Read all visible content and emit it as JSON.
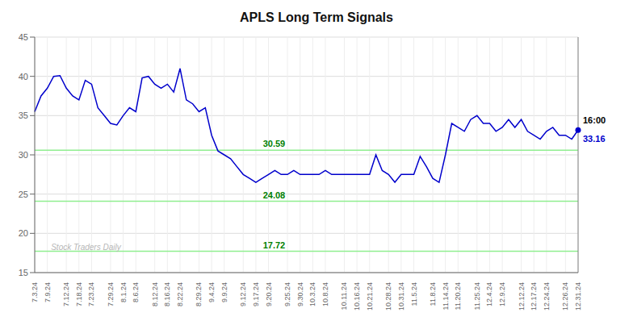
{
  "chart_data": {
    "type": "line",
    "title": "APLS Long Term Signals",
    "categories": [
      "7.3.24",
      null,
      "7.9.24",
      null,
      null,
      "7.12.24",
      null,
      "7.18.24",
      null,
      "7.23.24",
      null,
      null,
      "7.29.24",
      null,
      "8.1.24",
      null,
      "8.6.24",
      null,
      null,
      "8.12.24",
      null,
      "8.16.24",
      null,
      "8.22.24",
      null,
      null,
      "8.29.24",
      null,
      "9.4.24",
      null,
      "9.9.24",
      null,
      null,
      "9.12.24",
      null,
      "9.17.24",
      null,
      "9.20.24",
      null,
      null,
      "9.25.24",
      null,
      "9.30.24",
      null,
      "10.3.24",
      null,
      "10.8.24",
      null,
      null,
      "10.11.24",
      null,
      "10.16.24",
      null,
      "10.21.24",
      null,
      null,
      "10.28.24",
      null,
      "10.31.24",
      null,
      "11.5.24",
      null,
      null,
      "11.8.24",
      null,
      "11.14.24",
      null,
      "11.20.24",
      null,
      null,
      "11.25.24",
      null,
      "12.4.24",
      null,
      "12.9.24",
      null,
      null,
      "12.12.24",
      null,
      "12.17.24",
      null,
      "12.24.24",
      null,
      null,
      "12.26.24",
      null,
      "12.31.24"
    ],
    "values": [
      35.5,
      37.5,
      38.5,
      40.0,
      40.1,
      38.5,
      37.5,
      37.0,
      39.5,
      39.0,
      36.0,
      35.0,
      34.0,
      33.8,
      35.0,
      36.0,
      35.5,
      39.8,
      40.0,
      39.0,
      38.5,
      39.0,
      38.0,
      41.0,
      37.0,
      36.5,
      35.5,
      36.0,
      32.5,
      30.5,
      30.0,
      29.5,
      28.5,
      27.5,
      27.0,
      26.5,
      27.0,
      27.5,
      28.0,
      27.5,
      27.5,
      28.0,
      27.5,
      27.5,
      27.5,
      27.5,
      28.0,
      27.5,
      27.5,
      27.5,
      27.5,
      27.5,
      27.5,
      27.5,
      30.0,
      28.0,
      27.5,
      26.5,
      27.5,
      27.5,
      27.5,
      29.8,
      28.5,
      27.0,
      26.5,
      30.0,
      34.0,
      33.5,
      33.0,
      34.5,
      35.0,
      34.0,
      34.0,
      33.0,
      33.5,
      34.5,
      33.5,
      34.5,
      33.0,
      32.5,
      32.0,
      33.0,
      33.5,
      32.5,
      32.5,
      32.0,
      33.16
    ],
    "color": "#0000cc",
    "ylim": [
      15,
      45
    ],
    "yticks": [
      15,
      20,
      25,
      30,
      35,
      40,
      45
    ],
    "grid": true,
    "hlines": [
      {
        "value": 30.59,
        "label": "30.59",
        "color": "#90ee90",
        "label_color": "green"
      },
      {
        "value": 24.08,
        "label": "24.08",
        "color": "#90ee90",
        "label_color": "green"
      },
      {
        "value": 17.72,
        "label": "17.72",
        "color": "#90ee90",
        "label_color": "green"
      }
    ],
    "vlines": [
      {
        "value": 86,
        "color": "gray"
      }
    ],
    "annotations": [
      {
        "text": "16:00",
        "x": 86,
        "y": 33.16,
        "color": "#000000",
        "position": "above"
      },
      {
        "text": "33.16",
        "x": 86,
        "y": 33.16,
        "color": "#0000cc",
        "position": "below",
        "marker": "circle"
      }
    ],
    "watermark": {
      "text": "Stock Traders Daily",
      "color": "#b0b0b0"
    }
  }
}
